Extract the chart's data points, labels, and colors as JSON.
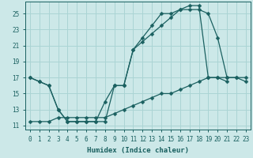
{
  "xlabel": "Humidex (Indice chaleur)",
  "bg_color": "#cce8e8",
  "grid_color": "#aad4d4",
  "line_color": "#1a6060",
  "xlim": [
    -0.5,
    23.5
  ],
  "ylim": [
    10.5,
    26.5
  ],
  "xticks": [
    0,
    1,
    2,
    3,
    4,
    5,
    6,
    7,
    8,
    9,
    10,
    11,
    12,
    13,
    14,
    15,
    16,
    17,
    18,
    19,
    20,
    21,
    22,
    23
  ],
  "yticks": [
    11,
    13,
    15,
    17,
    19,
    21,
    23,
    25
  ],
  "line1_x": [
    0,
    1,
    2,
    3,
    4,
    5,
    6,
    7,
    8,
    9,
    10,
    11,
    12,
    13,
    14,
    15,
    16,
    17,
    18,
    19,
    20,
    21
  ],
  "line1_y": [
    17,
    16.5,
    16,
    13,
    11.5,
    11.5,
    11.5,
    11.5,
    11.5,
    16,
    16,
    20.5,
    21.5,
    22.5,
    23.5,
    24.5,
    25.5,
    26,
    26,
    17,
    17,
    16.5
  ],
  "line2_x": [
    0,
    1,
    2,
    3,
    4,
    5,
    6,
    7,
    8,
    9,
    10,
    11,
    12,
    13,
    14,
    15,
    16,
    17,
    18,
    19,
    20,
    21,
    22,
    23
  ],
  "line2_y": [
    17,
    16.5,
    16,
    13,
    11.5,
    11.5,
    11.5,
    11.5,
    14,
    16,
    16,
    20.5,
    22,
    23.5,
    25,
    25,
    25.5,
    25.5,
    25.5,
    25,
    22,
    17,
    17,
    16.5
  ],
  "line3_x": [
    0,
    1,
    2,
    3,
    4,
    5,
    6,
    7,
    8,
    9,
    10,
    11,
    12,
    13,
    14,
    15,
    16,
    17,
    18,
    19,
    20,
    21,
    22,
    23
  ],
  "line3_y": [
    11.5,
    11.5,
    11.5,
    12,
    12,
    12,
    12,
    12,
    12,
    12.5,
    13,
    13.5,
    14,
    14.5,
    15,
    15,
    15.5,
    16,
    16.5,
    17,
    17,
    17,
    17,
    17
  ]
}
